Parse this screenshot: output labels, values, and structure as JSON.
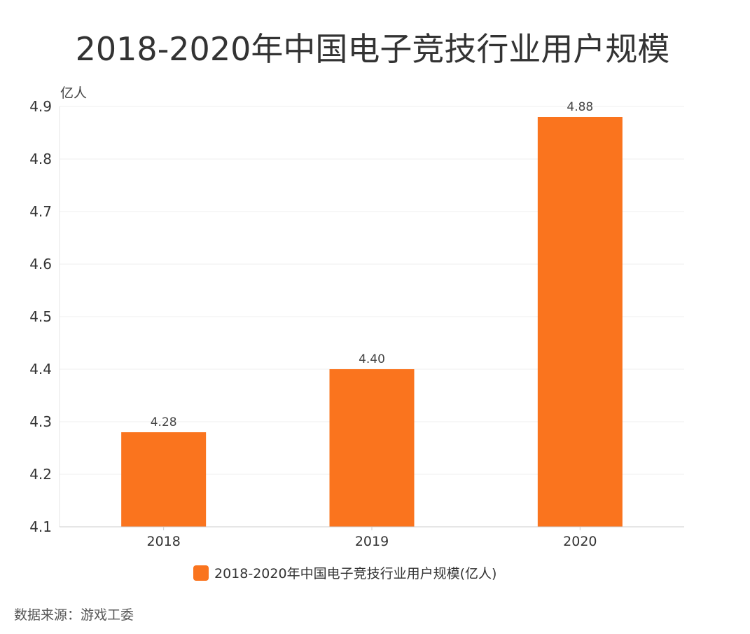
{
  "source": "数据来源：游戏工委",
  "chart_data": {
    "type": "bar",
    "title": "2018-2020年中国电子竞技行业用户规模",
    "ylabel": "亿人",
    "xlabel": "",
    "categories": [
      "2018",
      "2019",
      "2020"
    ],
    "series": [
      {
        "name": "2018-2020年中国电子竞技行业用户规模(亿人)",
        "values": [
          4.28,
          4.4,
          4.88
        ],
        "data_labels": [
          "4.28",
          "4.40",
          "4.88"
        ],
        "color": "#FA741E"
      }
    ],
    "ylim": [
      4.1,
      4.9
    ],
    "yticks": [
      "4.1",
      "4.2",
      "4.3",
      "4.4",
      "4.5",
      "4.6",
      "4.7",
      "4.8",
      "4.9"
    ],
    "grid": true,
    "legend": "bottom"
  }
}
